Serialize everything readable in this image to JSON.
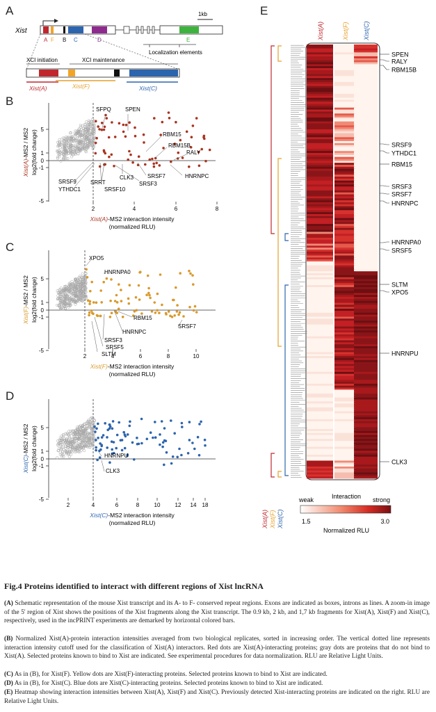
{
  "panels": {
    "A": "A",
    "B": "B",
    "C": "C",
    "D": "D",
    "E": "E"
  },
  "panelA": {
    "gene": "Xist",
    "scale": "1kb",
    "repeats": [
      {
        "name": "A",
        "color": "#c0272d"
      },
      {
        "name": "F",
        "color": "#f2a427"
      },
      {
        "name": "B",
        "color": "#111111"
      },
      {
        "name": "C",
        "color": "#2c64ad"
      },
      {
        "name": "D",
        "color": "#8e2a8e"
      },
      {
        "name": "E",
        "color": "#3db33d"
      }
    ],
    "localization": "Localization elements",
    "xci_initiation": "XCI initiation",
    "xci_maintenance": "XCI maintenance",
    "fragments": [
      {
        "name": "Xist(A)",
        "color": "#c0272d"
      },
      {
        "name": "Xist(F)",
        "color": "#e6a02a"
      },
      {
        "name": "Xist(C)",
        "color": "#2c64ad"
      }
    ]
  },
  "panelB": {
    "ylabel_colored": "Xist(A)",
    "ylabel_rest": "-MS2 / MS2",
    "ylabel2": "log2(fold change)",
    "xlabel_colored": "Xist(A)",
    "xlabel_rest": "-MS2 interaction intensity",
    "xlabel2": "(normalized RLU)",
    "xticks": [
      "2",
      "4",
      "6",
      "8"
    ],
    "yticks": [
      "5",
      "1",
      "0",
      "-1",
      "-5"
    ],
    "labels": [
      "SFPQ",
      "SPEN",
      "RBM15",
      "RBM15B",
      "RALY",
      "HNRNPC",
      "SRSF7",
      "CLK3",
      "SRSF3",
      "SRRT",
      "SRSF10",
      "SRSF9",
      "YTHDC1"
    ]
  },
  "panelC": {
    "ylabel_colored": "Xist(F)",
    "ylabel_rest": "-MS2 / MS2",
    "ylabel2": "log2(fold change)",
    "xlabel_colored": "Xist(F)",
    "xlabel_rest": "-MS2 interaction intensity",
    "xlabel2": "(normalized RLU)",
    "xticks": [
      "2",
      "4",
      "6",
      "8",
      "10"
    ],
    "yticks": [
      "5",
      "1",
      "0",
      "-1",
      "-5"
    ],
    "labels": [
      "XPO5",
      "HNRNPA0",
      "RBM15",
      "SRSF7",
      "HNRNPC",
      "SRSF3",
      "SRSF5",
      "SLTM"
    ]
  },
  "panelD": {
    "ylabel_colored": "Xist(C)",
    "ylabel_rest": "-MS2 / MS2",
    "ylabel2": "log2(fold change)",
    "xlabel_colored": "Xist(C)",
    "xlabel_rest": "-MS2 interaction intensity",
    "xlabel2": "(normalized RLU)",
    "xticks": [
      "2",
      "4",
      "6",
      "8",
      "10",
      "12",
      "14",
      "18"
    ],
    "yticks": [
      "5",
      "1",
      "0",
      "-1",
      "-5"
    ],
    "labels": [
      "HNRNPU",
      "CLK3"
    ]
  },
  "panelE": {
    "columns": [
      "Xist(A)",
      "Xist(F)",
      "Xist(C)"
    ],
    "column_colors": [
      "#c0272d",
      "#e6a02a",
      "#2c64ad"
    ],
    "right_labels": [
      "SPEN",
      "RALY",
      "RBM15B",
      "SRSF9",
      "YTHDC1",
      "RBM15",
      "SRSF3",
      "SRSF7",
      "HNRNPC",
      "HNRNPA0",
      "SRSF5",
      "SLTM",
      "XPO5",
      "HNRNPU",
      "CLK3"
    ],
    "legend_title": "Interaction",
    "legend_weak": "weak",
    "legend_strong": "strong",
    "legend_min": "1.5",
    "legend_max": "3.0",
    "legend_unit": "Normalized RLU"
  },
  "caption": {
    "title": "Fig.4  Proteins identified to interact with different regions of Xist lncRNA",
    "A_tag": "(A)",
    "A_text": " Schematic representation of the mouse Xist transcript and its A- to F- conserved repeat regions. Exons are indicated as boxes, introns as lines. A zoom-in image of the 5' region of Xist shows the positions of the Xist fragments along the Xist transcript. The 0.9 kb, 2 kb, and 1,7 kb fragments for Xist(A), Xist(F) and Xist(C), respectively, used in the incPRINT experiments are demarked by horizontal colored bars.",
    "B_tag": "(B)",
    "B_text": " Normalized Xist(A)-protein interaction intensities averaged from two biological replicates, sorted in increasing order. The vertical dotted line represents interaction intensity cutoff used for the classification of Xist(A) interactors. Red dots are Xist(A)-interacting proteins; gray dots are proteins that do not bind to Xist(A). Selected proteins known to bind to Xist are indicated. See experimental procedures for data normalization. RLU are Relative Light Units.",
    "C_tag": "(C)",
    "C_text": " As in (B), for Xist(F). Yellow dots are Xist(F)-interacting proteins. Selected proteins known to bind to Xist are indicated.",
    "D_tag": "(D)",
    "D_text": " As in (B), for Xist(C). Blue dots are Xist(C)-interacting proteins. Selected proteins known to bind to Xist are indicated.",
    "E_tag": "(E)",
    "E_text": " Heatmap showing interaction intensities between Xist(A), Xist(F) and Xist(C). Previously detected Xist-interacting proteins are indicated on the right. RLU are Relative Light Units."
  }
}
